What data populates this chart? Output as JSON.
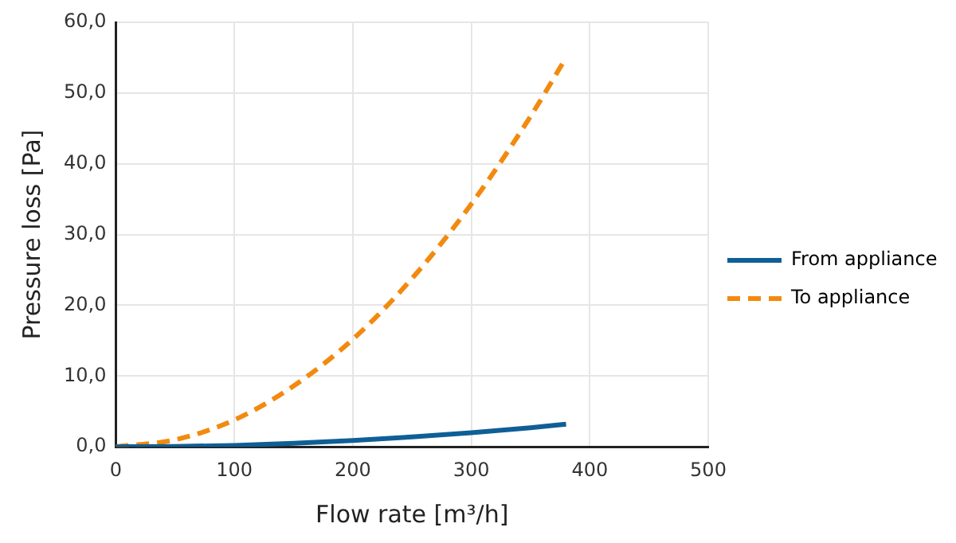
{
  "chart_data": {
    "type": "line",
    "xlabel": "Flow rate [m³/h]",
    "ylabel": "Pressure loss [Pa]",
    "xlim": [
      0,
      500
    ],
    "xticks": [
      0,
      100,
      200,
      300,
      400,
      500
    ],
    "ylim": [
      0,
      60
    ],
    "yticks": [
      {
        "value": 0,
        "label": "0,0"
      },
      {
        "value": 10,
        "label": "10,0"
      },
      {
        "value": 20,
        "label": "20,0"
      },
      {
        "value": 30,
        "label": "30,0"
      },
      {
        "value": 40,
        "label": "40,0"
      },
      {
        "value": 50,
        "label": "50,0"
      },
      {
        "value": 60,
        "label": "60,0"
      }
    ],
    "grid": true,
    "legend": "right",
    "marker": "none",
    "series": [
      {
        "name": "From appliance",
        "color": "#0f5f96",
        "line_style": "solid",
        "x": [
          0,
          50,
          100,
          150,
          200,
          250,
          300,
          350,
          380
        ],
        "values": [
          0,
          0.05,
          0.2,
          0.5,
          0.9,
          1.4,
          2.0,
          2.7,
          3.2
        ]
      },
      {
        "name": "To appliance",
        "color": "#f28a0f",
        "line_style": "dashed",
        "x": [
          0,
          50,
          100,
          150,
          200,
          250,
          300,
          350,
          380
        ],
        "values": [
          0,
          1.0,
          3.8,
          8.6,
          15.2,
          23.8,
          34.3,
          46.7,
          55
        ]
      }
    ]
  }
}
